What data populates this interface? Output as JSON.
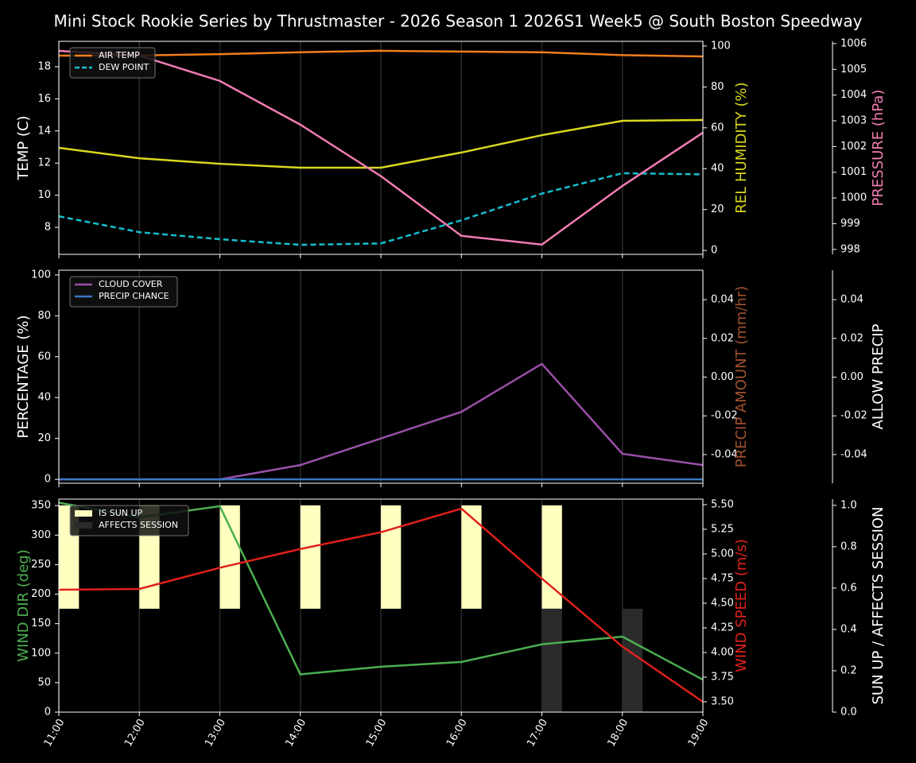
{
  "title": "Mini Stock Rookie Series by Thrustmaster - 2026 Season 1 2026S1 Week5 @ South Boston Speedway",
  "x": [
    "11:00",
    "12:00",
    "13:00",
    "14:00",
    "15:00",
    "16:00",
    "17:00",
    "18:00",
    "19:00"
  ],
  "chart_data": [
    {
      "type": "line",
      "grid": "x",
      "legend": "upper left",
      "ylabel": "TEMP (C)",
      "ylabel_color": "#ffffff",
      "ylim": [
        6.32,
        19.58
      ],
      "yticks": [
        8,
        10,
        12,
        14,
        16,
        18
      ],
      "y2label": "REL HUMIDITY (%)",
      "y2label_color": "#d8d820",
      "y2lim": [
        -1.9,
        102.3
      ],
      "y2ticks": [
        0,
        20,
        40,
        60,
        80,
        100
      ],
      "y3label": "PRESSURE (hPa)",
      "y3label_color": "#f27db3",
      "y3lim": [
        997.81,
        1006.09
      ],
      "y3ticks": [
        998,
        999,
        1000,
        1001,
        1002,
        1003,
        1004,
        1005,
        1006
      ],
      "series": [
        {
          "name": "AIR TEMP",
          "color": "#f07d1a",
          "axis": "y",
          "values": [
            18.69,
            18.7,
            18.78,
            18.9,
            18.99,
            18.94,
            18.9,
            18.72,
            18.64
          ]
        },
        {
          "name": "DEW POINT",
          "color": "#17becf",
          "axis": "y",
          "dashed": true,
          "values": [
            8.69,
            7.7,
            7.26,
            6.91,
            7.0,
            8.44,
            10.1,
            11.37,
            11.3
          ]
        },
        {
          "color": "#d8d820",
          "axis": "y2",
          "values": [
            50.2,
            45.1,
            42.4,
            40.5,
            40.5,
            47.9,
            56.4,
            63.4,
            63.8
          ]
        },
        {
          "color": "#f27db3",
          "axis": "y3",
          "values": [
            1005.72,
            1005.54,
            1004.55,
            1002.85,
            1000.85,
            998.53,
            998.19,
            1000.47,
            1002.54
          ]
        }
      ]
    },
    {
      "type": "line",
      "grid": "x",
      "legend": "upper left",
      "ylabel": "PERCENTAGE (%)",
      "ylabel_color": "#ffffff",
      "ylim": [
        -1.9,
        102.3
      ],
      "yticks": [
        0,
        20,
        40,
        60,
        80,
        100
      ],
      "y2label": "PRECIP AMOUNT (mm/hr)",
      "y2label_color": "#a0522d",
      "y2lim": [
        -0.0548,
        0.0552
      ],
      "y2ticks": [
        -0.04,
        -0.02,
        {
          "value": 0,
          "label": "0.00"
        },
        0.02,
        0.04
      ],
      "y3label": "ALLOW PRECIP",
      "y3label_color": "#ffffff",
      "y3lim": [
        -0.0548,
        0.0552
      ],
      "y3ticks": [
        -0.04,
        -0.02,
        {
          "value": 0,
          "label": "0.00"
        },
        0.02,
        0.04
      ],
      "series": [
        {
          "name": "CLOUD COVER",
          "color": "#9b4fa8",
          "axis": "y",
          "values": [
            0,
            0,
            0,
            7,
            20,
            33,
            56.5,
            12.5,
            7
          ]
        },
        {
          "name": "PRECIP CHANCE",
          "color": "#3a78c2",
          "axis": "y",
          "values": [
            0,
            0,
            0,
            0,
            0,
            0,
            0,
            0,
            0
          ]
        }
      ]
    },
    {
      "type": "line",
      "grid": "x",
      "legend": "upper left",
      "show_x_labels": true,
      "ylabel": "WIND DIR (deg)",
      "ylabel_color": "#4caf50",
      "ylim": [
        0,
        361
      ],
      "yticks": [
        0,
        50,
        100,
        150,
        200,
        250,
        300,
        350
      ],
      "y2label": "WIND SPEED (m/s)",
      "y2label_color": "#e0201c",
      "y2lim": [
        3.395,
        5.556
      ],
      "y2ticks": [
        {
          "value": 3.5,
          "label": "3.50"
        },
        3.75,
        {
          "value": 4,
          "label": "4.00"
        },
        4.25,
        {
          "value": 4.5,
          "label": "4.50"
        },
        4.75,
        {
          "value": 5,
          "label": "5.00"
        },
        5.25,
        {
          "value": 5.5,
          "label": "5.50"
        }
      ],
      "y3label": "SUN UP / AFFECTS SESSION",
      "y3label_color": "#ffffff",
      "y3lim": [
        0,
        1.03
      ],
      "y3ticks": [
        {
          "value": 0,
          "label": "0.0"
        },
        0.2,
        0.4,
        0.6,
        0.8,
        {
          "value": 1,
          "label": "1.0"
        }
      ],
      "series": [
        {
          "name": "IS SUN UP",
          "type": "bar",
          "color": "#ffffc0",
          "axis": "y3",
          "bottom": 0.5,
          "values": [
            0.5,
            0.5,
            0.5,
            0.5,
            0.5,
            0.5,
            0.5,
            0,
            0
          ]
        },
        {
          "name": "AFFECTS SESSION",
          "type": "bar",
          "color": "#2b2b2b",
          "axis": "y3",
          "bottom": 0,
          "values": [
            0,
            0,
            0,
            0,
            0,
            0,
            0.5,
            0.5,
            0
          ]
        },
        {
          "color": "#4caf50",
          "axis": "y",
          "values": [
            355,
            330,
            349,
            64,
            77,
            85,
            115,
            128,
            55
          ]
        },
        {
          "color": "#e0201c",
          "axis": "y2",
          "values": [
            4.637,
            4.645,
            4.86,
            5.05,
            5.22,
            5.46,
            4.75,
            4.06,
            3.5
          ]
        }
      ]
    }
  ]
}
